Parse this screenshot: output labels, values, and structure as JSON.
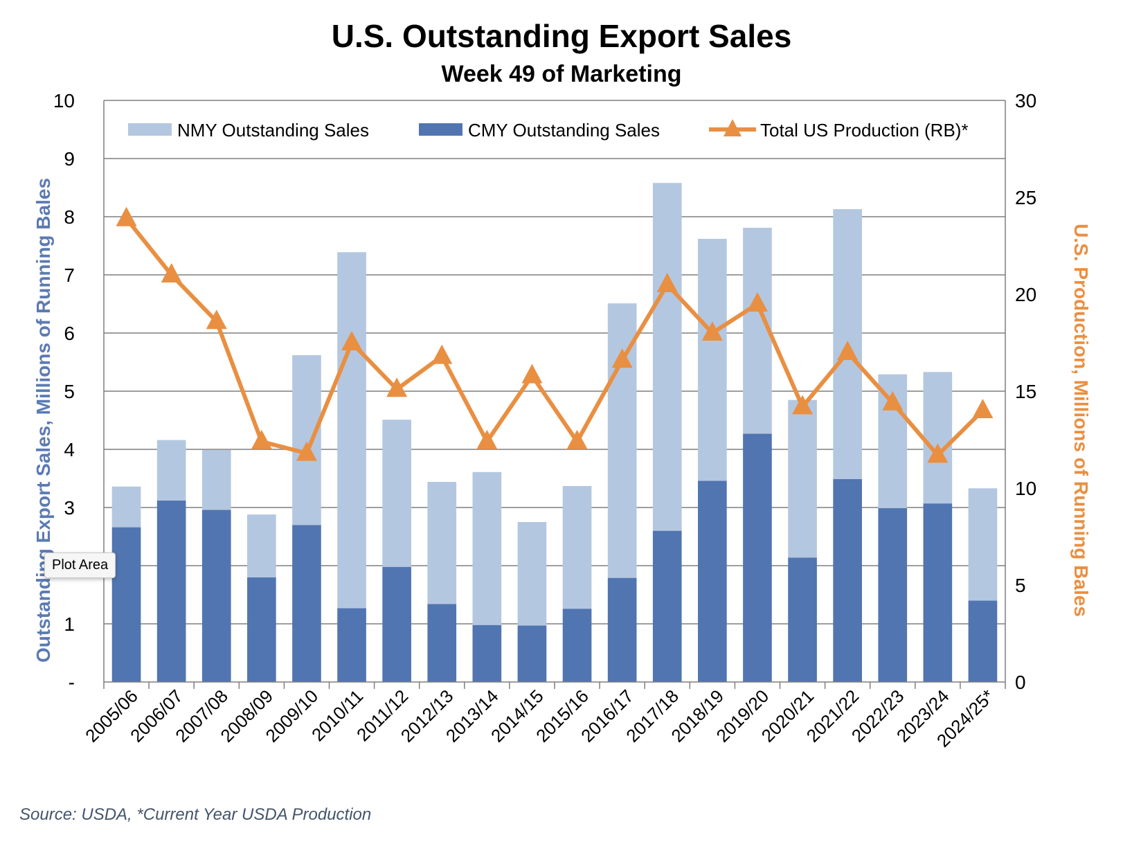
{
  "colors": {
    "nmy": "#b4c7e0",
    "cmy": "#5175b0",
    "production": "#e98f42",
    "grid": "#7f7f7f",
    "left_axis_title": "#5b7ab3",
    "right_axis_title": "#e98f42"
  },
  "tooltip": "Plot Area",
  "source_note": "Source: USDA, *Current Year USDA Production",
  "chart_data": {
    "type": "bar",
    "title": "U.S. Outstanding Export Sales",
    "subtitle": "Week 49 of Marketing",
    "ylabel": "Outstanding Export Sales, Millions of Running Bales",
    "y2label": "U.S. Production, Millions of Running Bales",
    "ylim": [
      0,
      10
    ],
    "y2lim": [
      0,
      30
    ],
    "yticks": [
      "-",
      "1",
      "2",
      "3",
      "4",
      "5",
      "6",
      "7",
      "8",
      "9",
      "10"
    ],
    "y2ticks": [
      "0",
      "5",
      "10",
      "15",
      "20",
      "25",
      "30"
    ],
    "grid": true,
    "legend_position": "top",
    "categories": [
      "2005/06",
      "2006/07",
      "2007/08",
      "2008/09",
      "2009/10",
      "2010/11",
      "2011/12",
      "2012/13",
      "2013/14",
      "2014/15",
      "2015/16",
      "2016/17",
      "2017/18",
      "2018/19",
      "2019/20",
      "2020/21",
      "2021/22",
      "2022/23",
      "2023/24",
      "2024/25*"
    ],
    "series": [
      {
        "name": "CMY Outstanding Sales",
        "type": "stacked-bar",
        "axis": "left",
        "values": [
          2.66,
          3.12,
          2.96,
          1.8,
          2.7,
          1.27,
          1.98,
          1.34,
          0.98,
          0.97,
          1.26,
          1.79,
          2.6,
          3.46,
          4.27,
          2.14,
          3.49,
          2.99,
          3.07,
          1.4
        ]
      },
      {
        "name": "NMY Outstanding Sales",
        "type": "stacked-bar",
        "axis": "left",
        "values": [
          0.7,
          1.04,
          1.03,
          1.08,
          2.92,
          6.12,
          2.53,
          2.1,
          2.63,
          1.78,
          2.11,
          4.72,
          5.98,
          4.16,
          3.54,
          2.71,
          4.64,
          2.3,
          2.26,
          1.93
        ]
      },
      {
        "name": "Total US Production (RB)*",
        "type": "line",
        "axis": "right",
        "values": [
          23.9,
          21.0,
          18.6,
          12.4,
          11.8,
          17.5,
          15.1,
          16.8,
          12.4,
          15.8,
          12.4,
          16.6,
          20.5,
          18.0,
          19.5,
          14.2,
          17.0,
          14.4,
          11.7,
          14.0
        ]
      }
    ],
    "legend": [
      "NMY Outstanding Sales",
      "CMY Outstanding Sales",
      "Total US Production (RB)*"
    ]
  }
}
